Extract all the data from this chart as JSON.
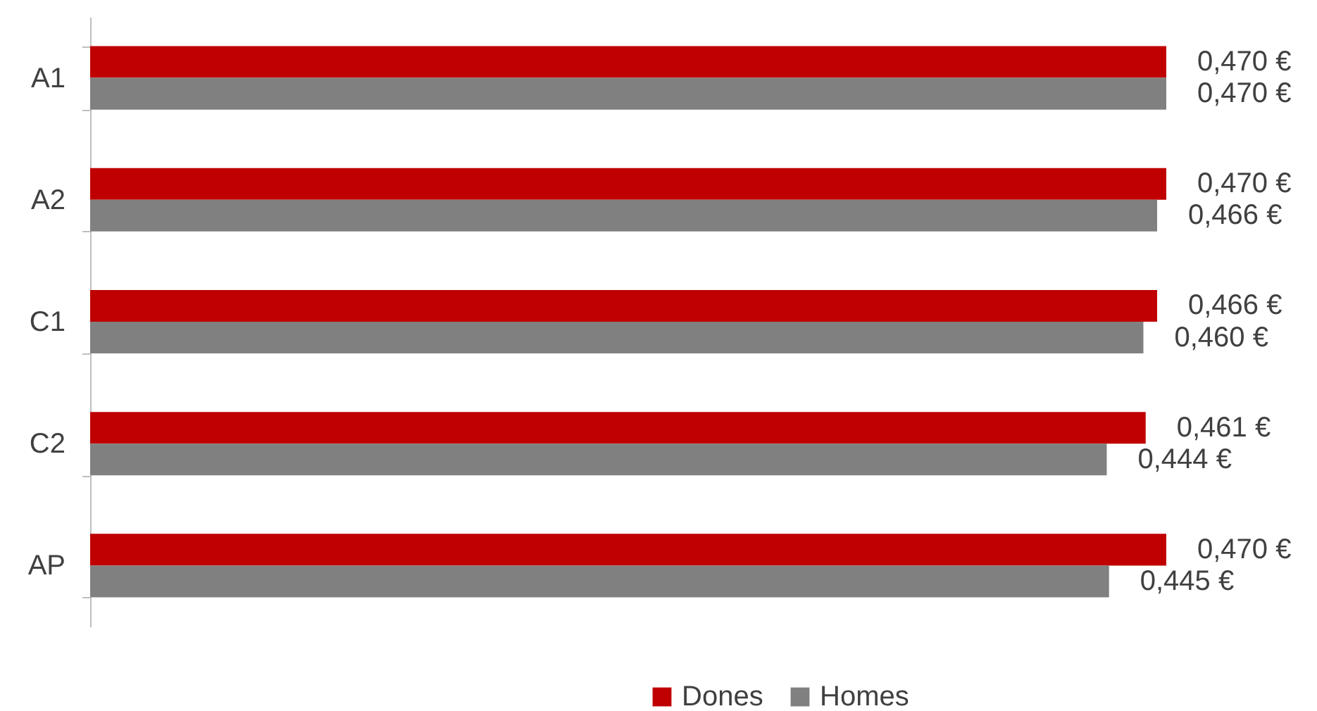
{
  "chart_data": {
    "type": "bar",
    "orientation": "horizontal",
    "categories": [
      "A1",
      "A2",
      "C1",
      "C2",
      "AP"
    ],
    "series": [
      {
        "name": "Dones",
        "color": "#c00000",
        "values": [
          0.47,
          0.47,
          0.466,
          0.461,
          0.47
        ],
        "value_labels": [
          "0,470 €",
          "0,470 €",
          "0,466 €",
          "0,461 €",
          "0,470 €"
        ]
      },
      {
        "name": "Homes",
        "color": "#808080",
        "values": [
          0.47,
          0.466,
          0.46,
          0.444,
          0.445
        ],
        "value_labels": [
          "0,470 €",
          "0,466 €",
          "0,460 €",
          "0,444 €",
          "0,445 €"
        ]
      }
    ],
    "legend": "bottom"
  }
}
